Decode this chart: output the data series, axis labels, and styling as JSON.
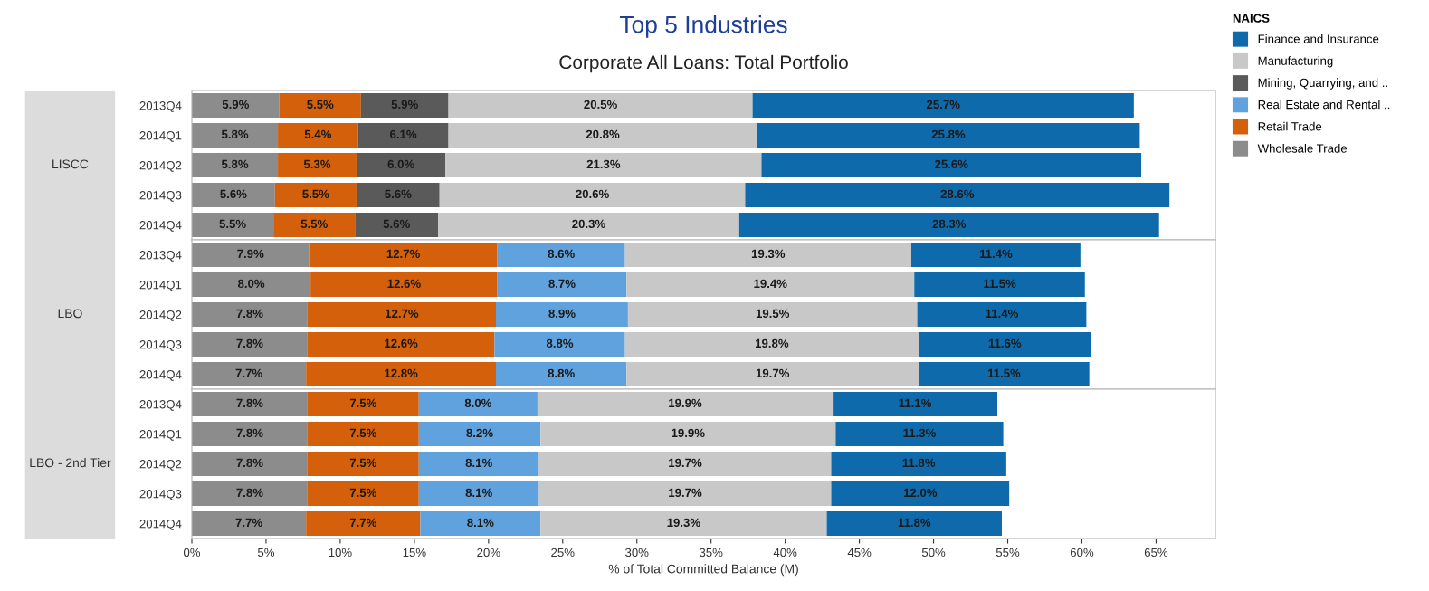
{
  "chart_data": [
    {
      "type": "bar",
      "orientation": "horizontal",
      "stacked": true,
      "title": "Top 5 Industries",
      "subtitle": "Corporate All Loans: Total Portfolio",
      "ylabel": "LISCC",
      "legend_title": "NAICS",
      "legend": "top right",
      "tick_labels": "y",
      "xlim": [
        0,
        69
      ],
      "categories": [
        "2013Q4",
        "2014Q1",
        "2014Q2",
        "2014Q3",
        "2014Q4"
      ],
      "series": [
        {
          "name": "Wholesale Trade",
          "color": "#8c8c8c",
          "values": [
            5.9,
            5.8,
            5.8,
            5.6,
            5.5
          ],
          "value_labels": [
            "5.9%",
            "5.8%",
            "5.8%",
            "5.6%",
            "5.5%"
          ]
        },
        {
          "name": "Retail Trade",
          "color": "#d4600c",
          "values": [
            5.5,
            5.4,
            5.3,
            5.5,
            5.5
          ],
          "value_labels": [
            "5.5%",
            "5.4%",
            "5.3%",
            "5.5%",
            "5.5%"
          ]
        },
        {
          "name": "Real Estate and Rental ..",
          "color": "#5fa2dd",
          "values": [
            null,
            null,
            null,
            null,
            null
          ]
        },
        {
          "name": "Mining, Quarrying, and ..",
          "color": "#5a5a5a",
          "values": [
            5.9,
            6.1,
            6.0,
            5.6,
            5.6
          ],
          "value_labels": [
            "5.9%",
            "6.1%",
            "6.0%",
            "5.6%",
            "5.6%"
          ]
        },
        {
          "name": "Manufacturing",
          "color": "#c8c8c8",
          "values": [
            20.5,
            20.8,
            21.3,
            20.6,
            20.3
          ],
          "value_labels": [
            "20.5%",
            "20.8%",
            "21.3%",
            "20.6%",
            "20.3%"
          ]
        },
        {
          "name": "Finance and Insurance",
          "color": "#0f6aab",
          "values": [
            25.7,
            25.8,
            25.6,
            28.6,
            28.3
          ],
          "value_labels": [
            "25.7%",
            "25.8%",
            "25.6%",
            "28.6%",
            "28.3%"
          ]
        }
      ]
    },
    {
      "type": "bar",
      "orientation": "horizontal",
      "stacked": true,
      "ylabel": "LBO",
      "tick_labels": "y",
      "xlim": [
        0,
        69
      ],
      "categories": [
        "2013Q4",
        "2014Q1",
        "2014Q2",
        "2014Q3",
        "2014Q4"
      ],
      "series": [
        {
          "color": "#8c8c8c",
          "values": [
            7.9,
            8.0,
            7.8,
            7.8,
            7.7
          ],
          "value_labels": [
            "7.9%",
            "8.0%",
            "7.8%",
            "7.8%",
            "7.7%"
          ]
        },
        {
          "color": "#d4600c",
          "values": [
            12.7,
            12.6,
            12.7,
            12.6,
            12.8
          ],
          "value_labels": [
            "12.7%",
            "12.6%",
            "12.7%",
            "12.6%",
            "12.8%"
          ]
        },
        {
          "color": "#5fa2dd",
          "values": [
            8.6,
            8.7,
            8.9,
            8.8,
            8.8
          ],
          "value_labels": [
            "8.6%",
            "8.7%",
            "8.9%",
            "8.8%",
            "8.8%"
          ]
        },
        {
          "color": "#c8c8c8",
          "values": [
            19.3,
            19.4,
            19.5,
            19.8,
            19.7
          ],
          "value_labels": [
            "19.3%",
            "19.4%",
            "19.5%",
            "19.8%",
            "19.7%"
          ]
        },
        {
          "color": "#0f6aab",
          "values": [
            11.4,
            11.5,
            11.4,
            11.6,
            11.5
          ],
          "value_labels": [
            "11.4%",
            "11.5%",
            "11.4%",
            "11.6%",
            "11.5%"
          ]
        }
      ]
    },
    {
      "type": "bar",
      "orientation": "horizontal",
      "stacked": true,
      "ylabel": "LBO - 2nd Tier",
      "xlabel": "% of Total Committed Balance (M)",
      "xlim": [
        0,
        69
      ],
      "xticks": [
        {
          "value": 0,
          "label": "0%"
        },
        {
          "value": 5,
          "label": "5%"
        },
        {
          "value": 10,
          "label": "10%"
        },
        {
          "value": 15,
          "label": "15%"
        },
        {
          "value": 20,
          "label": "20%"
        },
        {
          "value": 25,
          "label": "25%"
        },
        {
          "value": 30,
          "label": "30%"
        },
        {
          "value": 35,
          "label": "35%"
        },
        {
          "value": 40,
          "label": "40%"
        },
        {
          "value": 45,
          "label": "45%"
        },
        {
          "value": 50,
          "label": "50%"
        },
        {
          "value": 55,
          "label": "55%"
        },
        {
          "value": 60,
          "label": "60%"
        },
        {
          "value": 65,
          "label": "65%"
        }
      ],
      "categories": [
        "2013Q4",
        "2014Q1",
        "2014Q2",
        "2014Q3",
        "2014Q4"
      ],
      "series": [
        {
          "color": "#8c8c8c",
          "values": [
            7.8,
            7.8,
            7.8,
            7.8,
            7.7
          ],
          "value_labels": [
            "7.8%",
            "7.8%",
            "7.8%",
            "7.8%",
            "7.7%"
          ]
        },
        {
          "color": "#d4600c",
          "values": [
            7.5,
            7.5,
            7.5,
            7.5,
            7.7
          ],
          "value_labels": [
            "7.5%",
            "7.5%",
            "7.5%",
            "7.5%",
            "7.7%"
          ]
        },
        {
          "color": "#5fa2dd",
          "values": [
            8.0,
            8.2,
            8.1,
            8.1,
            8.1
          ],
          "value_labels": [
            "8.0%",
            "8.2%",
            "8.1%",
            "8.1%",
            "8.1%"
          ]
        },
        {
          "color": "#c8c8c8",
          "values": [
            19.9,
            19.9,
            19.7,
            19.7,
            19.3
          ],
          "value_labels": [
            "19.9%",
            "19.9%",
            "19.7%",
            "19.7%",
            "19.3%"
          ]
        },
        {
          "color": "#0f6aab",
          "values": [
            11.1,
            11.3,
            11.8,
            12.0,
            11.8
          ],
          "value_labels": [
            "11.1%",
            "11.3%",
            "11.8%",
            "12.0%",
            "11.8%"
          ]
        }
      ]
    }
  ]
}
